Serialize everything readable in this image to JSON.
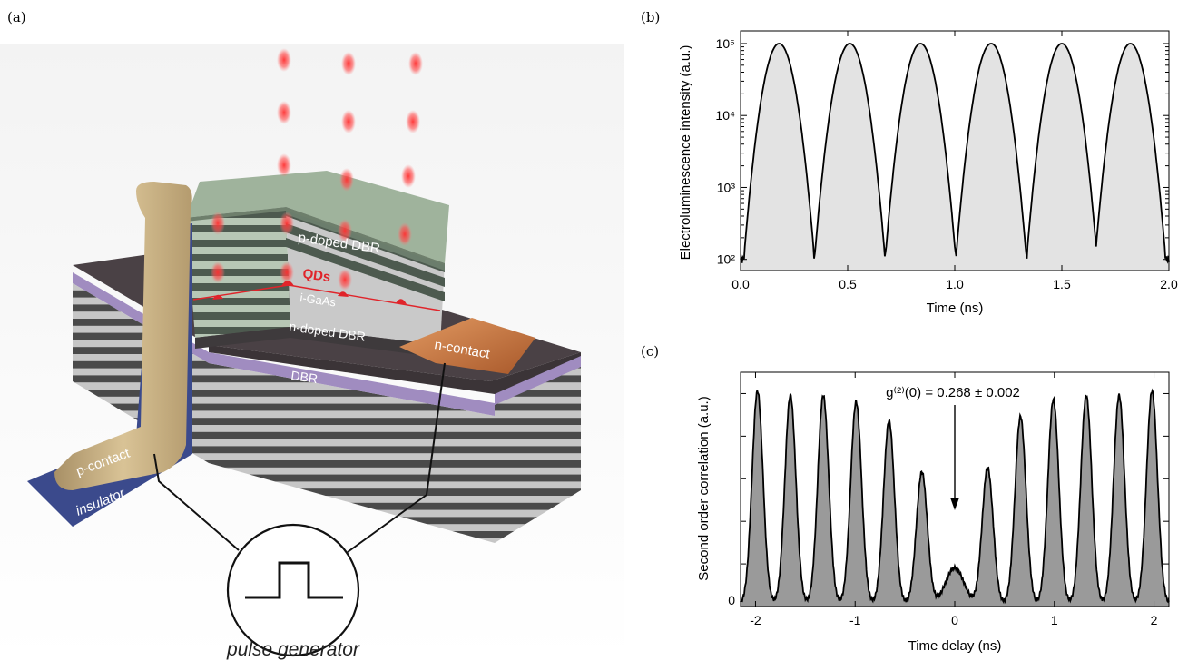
{
  "panels": {
    "a": {
      "label": "(a)",
      "labels": {
        "p_dbr": "p-doped DBR",
        "qds": "QDs",
        "igaas": "i-GaAs",
        "n_dbr": "n-doped DBR",
        "dbr": "DBR",
        "n_contact": "n-contact",
        "p_contact": "p-contact",
        "insulator": "insulator",
        "pulse_generator": "pulse generator"
      }
    },
    "b": {
      "label": "(b)"
    },
    "c": {
      "label": "(c)"
    }
  },
  "colors": {
    "fill_b": "#e3e3e3",
    "fill_c": "#9a9a9a",
    "line": "#000000",
    "qd_red": "#e0242a",
    "gold": "#c8b080",
    "insulator_blue": "#3b4a8c",
    "copper": "#c9733b"
  },
  "chart_data": [
    {
      "panel": "b",
      "type": "line",
      "xlabel": "Time (ns)",
      "ylabel": "Electroluminescence intensity (a.u.)",
      "xlim": [
        0,
        2
      ],
      "ylim": [
        70,
        150000
      ],
      "yscale": "log",
      "xticks": [
        0,
        0.5,
        1,
        1.5,
        2
      ],
      "xtick_labels": [
        "0.0",
        "0.5",
        "1.0",
        "1.5",
        "2.0"
      ],
      "yticks": [
        100,
        1000,
        10000,
        100000
      ],
      "ytick_labels": [
        "10²",
        "10³",
        "10⁴",
        "10⁵"
      ],
      "peak_times": [
        0.18,
        0.51,
        0.84,
        1.17,
        1.5,
        1.82
      ],
      "peak_value": 100000,
      "baseline": 100,
      "filled": true
    },
    {
      "panel": "c",
      "type": "area",
      "xlabel": "Time delay (ns)",
      "ylabel": "Second order correlation (a.u.)",
      "xlim": [
        -2.15,
        2.15
      ],
      "ylim": [
        0,
        1.1
      ],
      "xticks": [
        -2,
        -1,
        0,
        1,
        2
      ],
      "xtick_labels": [
        "-2",
        "-1",
        "0",
        "1",
        "2"
      ],
      "ytick_labels": [
        "0"
      ],
      "peak_positions": [
        -1.98,
        -1.65,
        -1.32,
        -0.99,
        -0.66,
        -0.33,
        0,
        0.33,
        0.66,
        0.99,
        1.32,
        1.65,
        1.98
      ],
      "peak_heights": [
        1.0,
        0.98,
        0.98,
        0.95,
        0.86,
        0.62,
        0.17,
        0.64,
        0.88,
        0.96,
        0.98,
        0.98,
        1.0
      ],
      "annotation": "g⁽²⁾(0) = 0.268 ± 0.002"
    }
  ]
}
